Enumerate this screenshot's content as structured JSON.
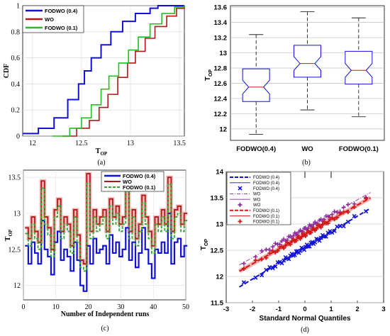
{
  "chart_data": [
    {
      "panel": "a",
      "type": "line",
      "caption": "(a)",
      "xlabel": "T",
      "xlabel_sub": "OP",
      "ylabel": "CDF",
      "xlim": [
        11.9,
        13.55
      ],
      "ylim": [
        0,
        1
      ],
      "xticks": [
        "12",
        "12.5",
        "13",
        "13.5"
      ],
      "yticks": [
        "0",
        "0.2",
        "0.4",
        "0.6",
        "0.8",
        "1"
      ],
      "legend": [
        "FODWO (0.4)",
        "WO",
        "FODWO (0.1)"
      ],
      "series": [
        {
          "name": "FODWO (0.4)",
          "color": "#1010d8",
          "x": [
            11.9,
            12.06,
            12.22,
            12.36,
            12.47,
            12.53,
            12.6,
            12.7,
            12.8,
            12.92,
            13.05,
            13.2,
            13.28,
            13.55
          ],
          "y": [
            0.02,
            0.06,
            0.14,
            0.28,
            0.4,
            0.5,
            0.6,
            0.7,
            0.8,
            0.88,
            0.94,
            0.98,
            1.0,
            1.0
          ]
        },
        {
          "name": "WO",
          "color": "#b01818",
          "x": [
            12.3,
            12.45,
            12.58,
            12.68,
            12.77,
            12.87,
            12.97,
            13.05,
            13.15,
            13.25,
            13.37,
            13.47,
            13.55
          ],
          "y": [
            0.0,
            0.06,
            0.12,
            0.22,
            0.32,
            0.45,
            0.56,
            0.65,
            0.75,
            0.84,
            0.92,
            0.98,
            1.0
          ]
        },
        {
          "name": "FODWO (0.1)",
          "color": "#20c020",
          "x": [
            12.2,
            12.38,
            12.5,
            12.6,
            12.7,
            12.78,
            12.88,
            12.98,
            13.08,
            13.2,
            13.32,
            13.45,
            13.55
          ],
          "y": [
            0.0,
            0.06,
            0.14,
            0.24,
            0.36,
            0.46,
            0.56,
            0.66,
            0.76,
            0.86,
            0.94,
            0.99,
            1.0
          ]
        }
      ]
    },
    {
      "panel": "b",
      "type": "box",
      "caption": "(b)",
      "ylabel": "T",
      "ylabel_sub": "OP",
      "ylim": [
        11.85,
        13.62
      ],
      "yticks": [
        "12",
        "12.2",
        "12.4",
        "12.6",
        "12.8",
        "13",
        "13.2",
        "13.4",
        "13.6"
      ],
      "categories": [
        "FODWO(0.4)",
        "WO",
        "FODWO(0.1)"
      ],
      "boxes": [
        {
          "min": 11.93,
          "q1": 12.36,
          "median": 12.55,
          "q3": 12.79,
          "max": 13.24,
          "notch_lo": 12.46,
          "notch_hi": 12.64
        },
        {
          "min": 12.25,
          "q1": 12.68,
          "median": 12.86,
          "q3": 13.1,
          "max": 13.54,
          "notch_lo": 12.77,
          "notch_hi": 12.95
        },
        {
          "min": 12.16,
          "q1": 12.59,
          "median": 12.77,
          "q3": 13.02,
          "max": 13.46,
          "notch_lo": 12.68,
          "notch_hi": 12.86
        }
      ],
      "box_color": "#1010d8",
      "median_color": "#d01818"
    },
    {
      "panel": "c",
      "type": "line",
      "caption": "(c)",
      "xlabel": "Number of Independent runs",
      "ylabel": "T",
      "ylabel_sub": "OP",
      "xlim": [
        0,
        50
      ],
      "ylim": [
        11.8,
        13.6
      ],
      "xticks": [
        "0",
        "10",
        "20",
        "30",
        "40",
        "50"
      ],
      "yticks": [
        "12",
        "12.5",
        "13",
        "13.5"
      ],
      "legend": [
        "FODWO (0.4)",
        "WO",
        "FODWO (0.1)"
      ],
      "series": [
        {
          "name": "FODWO (0.4)",
          "color": "#1010d8",
          "values": [
            12.55,
            12.3,
            12.6,
            12.45,
            12.3,
            12.9,
            12.5,
            12.4,
            12.15,
            12.6,
            12.75,
            12.35,
            12.5,
            12.4,
            12.2,
            12.6,
            12.35,
            12.0,
            11.92,
            12.55,
            12.3,
            12.65,
            12.45,
            12.5,
            12.55,
            12.3,
            12.7,
            12.45,
            12.6,
            12.4,
            12.5,
            12.8,
            12.35,
            12.6,
            12.25,
            12.45,
            12.8,
            12.5,
            12.3,
            12.1,
            12.5,
            12.45,
            12.6,
            12.45,
            13.0,
            12.3,
            12.6,
            12.65,
            12.4,
            12.55
          ]
        },
        {
          "name": "WO",
          "color": "#b01818",
          "values": [
            12.8,
            12.65,
            12.95,
            12.75,
            12.6,
            13.45,
            12.95,
            12.8,
            12.5,
            13.05,
            13.2,
            12.75,
            12.95,
            12.85,
            12.55,
            13.05,
            12.7,
            12.35,
            12.3,
            13.55,
            12.75,
            13.05,
            12.85,
            12.95,
            13.05,
            12.75,
            13.2,
            12.95,
            13.1,
            12.85,
            12.95,
            13.4,
            12.75,
            13.05,
            12.65,
            12.85,
            13.25,
            12.95,
            12.75,
            12.55,
            12.95,
            12.85,
            13.05,
            12.85,
            13.5,
            12.75,
            13.05,
            13.1,
            12.85,
            13.0
          ]
        },
        {
          "name": "FODWO (0.1)",
          "color": "#2aa82a",
          "values": [
            12.72,
            12.55,
            12.85,
            12.65,
            12.5,
            13.35,
            12.85,
            12.7,
            12.4,
            12.95,
            13.1,
            12.65,
            12.85,
            12.75,
            12.45,
            12.95,
            12.6,
            12.25,
            12.2,
            13.42,
            12.65,
            12.95,
            12.75,
            12.85,
            12.95,
            12.65,
            13.1,
            12.85,
            13.0,
            12.75,
            12.85,
            13.3,
            12.65,
            12.95,
            12.55,
            12.75,
            13.15,
            12.85,
            12.65,
            12.45,
            12.85,
            12.75,
            12.95,
            12.75,
            13.4,
            12.65,
            12.95,
            13.0,
            12.75,
            12.9
          ]
        }
      ]
    },
    {
      "panel": "d",
      "type": "scatter",
      "caption": "(d)",
      "xlabel": "Standard Normal Quantiles",
      "ylabel": "T",
      "ylabel_sub": "OP",
      "xlim": [
        -3,
        3
      ],
      "ylim": [
        11.5,
        14
      ],
      "xticks": [
        "-3",
        "-2",
        "-1",
        "0",
        "1",
        "2",
        "3"
      ],
      "yticks": [
        "11.5",
        "12",
        "12.5",
        "13",
        "13.5",
        "14"
      ],
      "legend": [
        "FODWO (0.4)",
        "FODWO (0.4)",
        "FODWO (0.4)",
        "WO",
        "WO",
        "WO",
        "FODWO (0.1)",
        "FODWO (0.1)",
        "FODWO (0.1)"
      ],
      "series": [
        {
          "name": "FODWO (0.4)",
          "color": "#1010d8",
          "marker": "x",
          "mean": 12.55,
          "sd": 0.3,
          "line": [
            [
              -2.5,
              11.8
            ],
            [
              2.5,
              13.3
            ]
          ]
        },
        {
          "name": "WO",
          "color": "#8a2a9a",
          "marker": "+",
          "mean": 12.9,
          "sd": 0.27,
          "line": [
            [
              -2.5,
              12.22
            ],
            [
              2.5,
              13.6
            ]
          ]
        },
        {
          "name": "FODWO (0.1)",
          "color": "#d01818",
          "marker": "+",
          "mean": 12.8,
          "sd": 0.28,
          "line": [
            [
              -2.5,
              12.1
            ],
            [
              2.5,
              13.5
            ]
          ]
        }
      ]
    }
  ]
}
